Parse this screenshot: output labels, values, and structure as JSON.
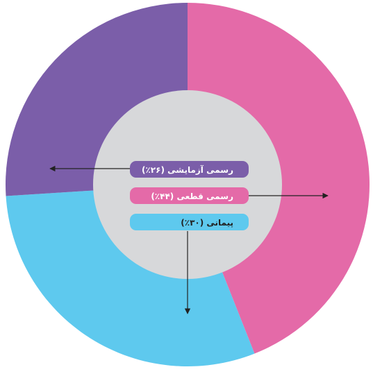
{
  "chart_data": {
    "type": "donut",
    "categories": [
      "رسمی قطعی",
      "پیمانی",
      "رسمی آزمایشی"
    ],
    "values": [
      44,
      30,
      26
    ],
    "value_labels": [
      "(۴۴٪)",
      "(۳۰٪)",
      "(۲۶٪)"
    ],
    "colors": [
      "#e46aa8",
      "#5ec9ee",
      "#7b5ea9"
    ]
  }
}
